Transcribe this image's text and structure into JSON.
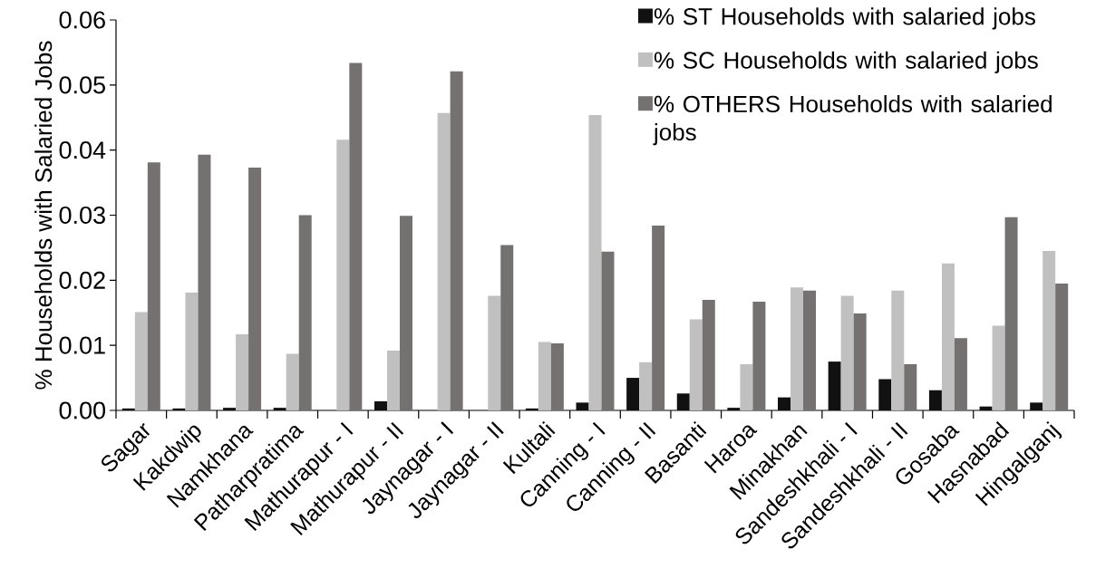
{
  "chart_data": {
    "type": "bar",
    "ylabel": "% Households with Salaried Jobs",
    "categories": [
      "Sagar",
      "Kakdwip",
      "Namkhana",
      "Patharpratima",
      "Mathurapur - I",
      "Mathurapur - II",
      "Jaynagar - I",
      "Jaynagar - II",
      "Kultali",
      "Canning - I",
      "Canning - II",
      "Basanti",
      "Haroa",
      "Minakhan",
      "Sandeshkhali - I",
      "Sandeshkhali - II",
      "Gosaba",
      "Hasnabad",
      "Hingalganj"
    ],
    "series": [
      {
        "name": "% ST Households with salaried jobs",
        "color": "#111111",
        "values": [
          0.0003,
          0.0003,
          0.0004,
          0.0004,
          0,
          0.0014,
          0,
          0,
          0.0003,
          0.0012,
          0.005,
          0.0026,
          0.0004,
          0.002,
          0.0075,
          0.0048,
          0.0031,
          0.0006,
          0.0012
        ]
      },
      {
        "name": "% SC Households with salaried jobs",
        "color": "#c0c0c0",
        "values": [
          0.0151,
          0.0181,
          0.0117,
          0.0087,
          0.0416,
          0.0092,
          0.0457,
          0.0176,
          0.0105,
          0.0454,
          0.0074,
          0.014,
          0.0071,
          0.0189,
          0.0176,
          0.0184,
          0.0226,
          0.013,
          0.0245
        ]
      },
      {
        "name": "% OTHERS Households with salaried jobs",
        "color": "#767171",
        "values": [
          0.0381,
          0.0393,
          0.0373,
          0.03,
          0.0534,
          0.0299,
          0.0521,
          0.0254,
          0.0103,
          0.0244,
          0.0284,
          0.017,
          0.0167,
          0.0184,
          0.0149,
          0.0071,
          0.0111,
          0.0297,
          0.0195
        ]
      }
    ],
    "ylim": [
      0,
      0.06
    ],
    "yticks": [
      {
        "value": 0,
        "label": "0.00"
      },
      0.01,
      0.02,
      0.03,
      0.04,
      0.05,
      0.06
    ],
    "legend": "top right"
  }
}
